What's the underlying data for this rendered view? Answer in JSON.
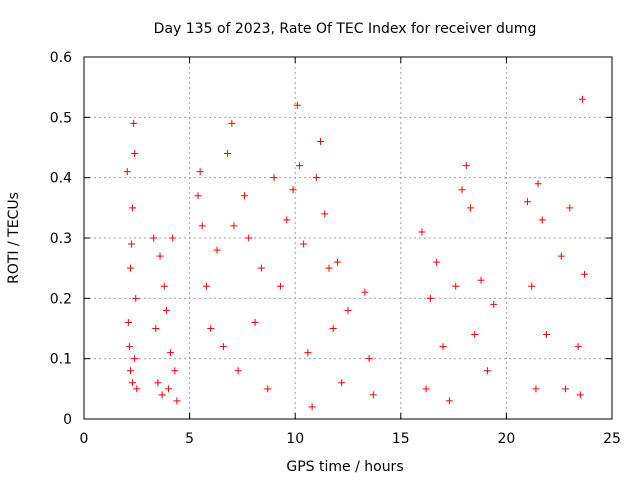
{
  "chart_data": {
    "type": "scatter",
    "title": "Day 135 of 2023, Rate Of TEC Index for receiver dumg",
    "xlabel": "GPS time / hours",
    "ylabel": "ROTI / TECUs",
    "xlim": [
      0,
      25
    ],
    "ylim": [
      0,
      0.6
    ],
    "xticks": [
      "0",
      "5",
      "10",
      "15",
      "20",
      "25"
    ],
    "yticks": [
      "0",
      "0.1",
      "0.2",
      "0.3",
      "0.4",
      "0.5",
      "0.6"
    ],
    "grid": true,
    "marker": "+",
    "colors": {
      "points": "#ff0000",
      "grid": "#a0a0a0",
      "axes": "#000000"
    },
    "series": [
      {
        "points": [
          [
            2.05,
            0.41
          ],
          [
            2.1,
            0.16
          ],
          [
            2.15,
            0.12
          ],
          [
            2.2,
            0.08
          ],
          [
            2.25,
            0.29
          ],
          [
            2.3,
            0.35
          ],
          [
            2.35,
            0.49
          ],
          [
            2.4,
            0.44
          ],
          [
            2.45,
            0.2
          ],
          [
            2.5,
            0.05
          ],
          [
            2.2,
            0.25
          ],
          [
            2.3,
            0.06
          ],
          [
            2.4,
            0.1
          ],
          [
            3.3,
            0.3
          ],
          [
            3.4,
            0.15
          ],
          [
            3.5,
            0.06
          ],
          [
            3.6,
            0.27
          ],
          [
            3.7,
            0.04
          ],
          [
            3.8,
            0.22
          ],
          [
            3.9,
            0.18
          ],
          [
            4.0,
            0.05
          ],
          [
            4.1,
            0.11
          ],
          [
            4.2,
            0.3
          ],
          [
            4.3,
            0.08
          ],
          [
            4.4,
            0.03
          ],
          [
            5.4,
            0.37
          ],
          [
            5.5,
            0.41
          ],
          [
            5.6,
            0.32
          ],
          [
            5.8,
            0.22
          ],
          [
            6.0,
            0.15
          ],
          [
            6.3,
            0.28
          ],
          [
            6.6,
            0.12
          ],
          [
            6.8,
            0.44
          ],
          [
            7.0,
            0.49
          ],
          [
            7.1,
            0.32
          ],
          [
            7.3,
            0.08
          ],
          [
            7.6,
            0.37
          ],
          [
            7.8,
            0.3
          ],
          [
            8.1,
            0.16
          ],
          [
            8.4,
            0.25
          ],
          [
            8.7,
            0.05
          ],
          [
            9.0,
            0.4
          ],
          [
            9.3,
            0.22
          ],
          [
            9.6,
            0.33
          ],
          [
            9.9,
            0.38
          ],
          [
            10.1,
            0.52
          ],
          [
            10.2,
            0.42
          ],
          [
            10.4,
            0.29
          ],
          [
            10.6,
            0.11
          ],
          [
            10.8,
            0.02
          ],
          [
            11.0,
            0.4
          ],
          [
            11.2,
            0.46
          ],
          [
            11.4,
            0.34
          ],
          [
            11.6,
            0.25
          ],
          [
            11.8,
            0.15
          ],
          [
            12.0,
            0.26
          ],
          [
            12.2,
            0.06
          ],
          [
            12.5,
            0.18
          ],
          [
            13.3,
            0.21
          ],
          [
            13.5,
            0.1
          ],
          [
            13.7,
            0.04
          ],
          [
            16.0,
            0.31
          ],
          [
            16.2,
            0.05
          ],
          [
            16.4,
            0.2
          ],
          [
            16.7,
            0.26
          ],
          [
            17.0,
            0.12
          ],
          [
            17.3,
            0.03
          ],
          [
            17.6,
            0.22
          ],
          [
            17.9,
            0.38
          ],
          [
            18.1,
            0.42
          ],
          [
            18.3,
            0.35
          ],
          [
            18.5,
            0.14
          ],
          [
            18.8,
            0.23
          ],
          [
            19.1,
            0.08
          ],
          [
            19.4,
            0.19
          ],
          [
            21.0,
            0.36
          ],
          [
            21.2,
            0.22
          ],
          [
            21.4,
            0.05
          ],
          [
            21.5,
            0.39
          ],
          [
            21.7,
            0.33
          ],
          [
            21.9,
            0.14
          ],
          [
            22.6,
            0.27
          ],
          [
            22.8,
            0.05
          ],
          [
            23.0,
            0.35
          ],
          [
            23.4,
            0.12
          ],
          [
            23.6,
            0.53
          ],
          [
            23.7,
            0.24
          ],
          [
            23.5,
            0.04
          ]
        ]
      }
    ]
  }
}
